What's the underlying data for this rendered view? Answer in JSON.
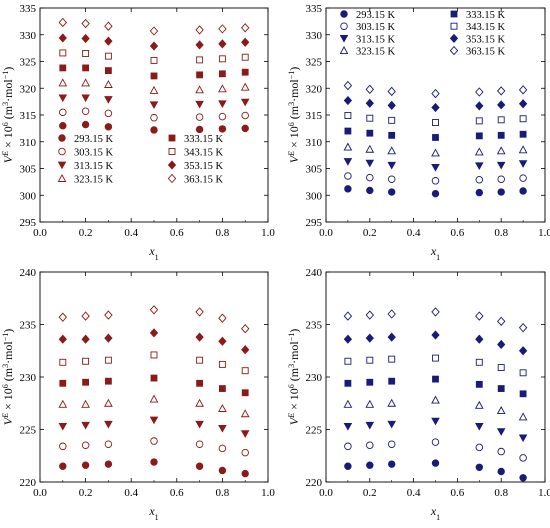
{
  "chart_data": [
    {
      "id": "panel-top-left",
      "type": "scatter",
      "xlabel": "x1",
      "ylabel": "VE × 10^6 (m^3·mol^-1)",
      "xlim": [
        0,
        1.0
      ],
      "ylim": [
        295,
        335
      ],
      "xticks": [
        "0.0",
        "0.2",
        "0.4",
        "0.6",
        "0.8",
        "1.0"
      ],
      "yticks": [
        "295",
        "300",
        "305",
        "310",
        "315",
        "320",
        "325",
        "330",
        "335"
      ],
      "color": "#8b1a1a",
      "legend_placement": "bottom-left",
      "x": [
        0.1,
        0.2,
        0.3,
        0.5,
        0.7,
        0.8,
        0.9
      ],
      "series": [
        {
          "name": "293.15 K",
          "marker": "circle-filled",
          "values": [
            313.0,
            313.2,
            312.8,
            312.2,
            312.3,
            312.4,
            312.5
          ]
        },
        {
          "name": "303.15 K",
          "marker": "circle-open",
          "values": [
            315.5,
            315.7,
            315.3,
            314.5,
            314.6,
            314.7,
            314.9
          ]
        },
        {
          "name": "313.15 K",
          "marker": "triangle-down-filled",
          "values": [
            318.2,
            318.2,
            317.9,
            316.9,
            317.0,
            317.1,
            317.4
          ]
        },
        {
          "name": "323.15 K",
          "marker": "triangle-up-open",
          "values": [
            321.0,
            321.0,
            320.7,
            319.6,
            319.7,
            319.9,
            320.2
          ]
        },
        {
          "name": "333.15 K",
          "marker": "square-filled",
          "values": [
            323.8,
            323.8,
            323.3,
            322.3,
            322.5,
            322.7,
            323.0
          ]
        },
        {
          "name": "343.15 K",
          "marker": "square-open",
          "values": [
            326.6,
            326.5,
            326.0,
            325.2,
            325.3,
            325.5,
            325.8
          ]
        },
        {
          "name": "353.15 K",
          "marker": "diamond-filled",
          "values": [
            329.4,
            329.3,
            328.8,
            327.9,
            328.1,
            328.3,
            328.6
          ]
        },
        {
          "name": "363.15 K",
          "marker": "diamond-open",
          "values": [
            332.3,
            332.1,
            331.6,
            330.7,
            330.9,
            331.1,
            331.3
          ]
        }
      ]
    },
    {
      "id": "panel-top-right",
      "type": "scatter",
      "xlabel": "x1",
      "ylabel": "VE × 10^6 (m^3·mol^-1)",
      "xlim": [
        0,
        1.0
      ],
      "ylim": [
        295,
        335
      ],
      "xticks": [
        "0.0",
        "0.2",
        "0.4",
        "0.6",
        "0.8",
        "1.0"
      ],
      "yticks": [
        "295",
        "300",
        "305",
        "310",
        "315",
        "320",
        "325",
        "330",
        "335"
      ],
      "color": "#1a1a7a",
      "legend_placement": "top",
      "x": [
        0.1,
        0.2,
        0.3,
        0.5,
        0.7,
        0.8,
        0.9
      ],
      "series": [
        {
          "name": "293.15 K",
          "marker": "circle-filled",
          "values": [
            301.2,
            300.9,
            300.6,
            300.3,
            300.5,
            300.6,
            300.8
          ]
        },
        {
          "name": "303.15 K",
          "marker": "circle-open",
          "values": [
            303.6,
            303.3,
            303.0,
            302.7,
            302.9,
            303.0,
            303.2
          ]
        },
        {
          "name": "313.15 K",
          "marker": "triangle-down-filled",
          "values": [
            306.3,
            306.0,
            305.6,
            305.2,
            305.5,
            305.6,
            305.9
          ]
        },
        {
          "name": "323.15 K",
          "marker": "triangle-up-open",
          "values": [
            309.0,
            308.6,
            308.3,
            307.9,
            308.1,
            308.3,
            308.5
          ]
        },
        {
          "name": "333.15 K",
          "marker": "square-filled",
          "values": [
            312.0,
            311.6,
            311.2,
            310.8,
            311.1,
            311.2,
            311.4
          ]
        },
        {
          "name": "343.15 K",
          "marker": "square-open",
          "values": [
            314.9,
            314.4,
            314.0,
            313.6,
            313.9,
            314.1,
            314.3
          ]
        },
        {
          "name": "353.15 K",
          "marker": "diamond-filled",
          "values": [
            317.7,
            317.2,
            316.8,
            316.4,
            316.7,
            316.9,
            317.1
          ]
        },
        {
          "name": "363.15 K",
          "marker": "diamond-open",
          "values": [
            320.5,
            319.8,
            319.4,
            319.0,
            319.3,
            319.5,
            319.7
          ]
        }
      ]
    },
    {
      "id": "panel-bottom-left",
      "type": "scatter",
      "xlabel": "x1",
      "ylabel": "VE × 10^6 (m^3·mol^-1)",
      "xlim": [
        0,
        1.0
      ],
      "ylim": [
        220,
        240
      ],
      "xticks": [
        "0.0",
        "0.2",
        "0.4",
        "0.6",
        "0.8",
        "1.0"
      ],
      "yticks": [
        "220",
        "225",
        "230",
        "235",
        "240"
      ],
      "color": "#8b1a1a",
      "x": [
        0.1,
        0.2,
        0.3,
        0.5,
        0.7,
        0.8,
        0.9
      ],
      "series": [
        {
          "name": "293.15 K",
          "marker": "circle-filled",
          "values": [
            221.5,
            221.6,
            221.7,
            221.9,
            221.5,
            221.1,
            220.8
          ]
        },
        {
          "name": "303.15 K",
          "marker": "circle-open",
          "values": [
            223.4,
            223.5,
            223.6,
            223.9,
            223.6,
            223.2,
            222.8
          ]
        },
        {
          "name": "313.15 K",
          "marker": "triangle-down-filled",
          "values": [
            225.3,
            225.4,
            225.5,
            225.9,
            225.5,
            225.1,
            224.6
          ]
        },
        {
          "name": "323.15 K",
          "marker": "triangle-up-open",
          "values": [
            227.4,
            227.4,
            227.5,
            227.9,
            227.5,
            227.0,
            226.5
          ]
        },
        {
          "name": "333.15 K",
          "marker": "square-filled",
          "values": [
            229.4,
            229.5,
            229.6,
            229.9,
            229.4,
            228.9,
            228.5
          ]
        },
        {
          "name": "343.15 K",
          "marker": "square-open",
          "values": [
            231.4,
            231.5,
            231.6,
            232.1,
            231.6,
            231.2,
            230.6
          ]
        },
        {
          "name": "353.15 K",
          "marker": "diamond-filled",
          "values": [
            233.6,
            233.6,
            233.7,
            234.2,
            233.8,
            233.4,
            232.6
          ]
        },
        {
          "name": "363.15 K",
          "marker": "diamond-open",
          "values": [
            235.7,
            235.8,
            235.9,
            236.4,
            236.2,
            235.6,
            234.6
          ]
        }
      ]
    },
    {
      "id": "panel-bottom-right",
      "type": "scatter",
      "xlabel": "x1",
      "ylabel": "VE × 10^6 (m^3·mol^-1)",
      "xlim": [
        0,
        1.0
      ],
      "ylim": [
        220,
        240
      ],
      "xticks": [
        "0.0",
        "0.2",
        "0.4",
        "0.6",
        "0.8",
        "1.0"
      ],
      "yticks": [
        "220",
        "225",
        "230",
        "235",
        "240"
      ],
      "color": "#1a1a7a",
      "x": [
        0.1,
        0.2,
        0.3,
        0.5,
        0.7,
        0.8,
        0.9
      ],
      "series": [
        {
          "name": "293.15 K",
          "marker": "circle-filled",
          "values": [
            221.5,
            221.6,
            221.7,
            221.8,
            221.4,
            221.0,
            220.4
          ]
        },
        {
          "name": "303.15 K",
          "marker": "circle-open",
          "values": [
            223.4,
            223.5,
            223.6,
            223.8,
            223.3,
            222.9,
            222.3
          ]
        },
        {
          "name": "313.15 K",
          "marker": "triangle-down-filled",
          "values": [
            225.3,
            225.4,
            225.5,
            225.8,
            225.3,
            224.8,
            224.2
          ]
        },
        {
          "name": "323.15 K",
          "marker": "triangle-up-open",
          "values": [
            227.4,
            227.4,
            227.5,
            227.8,
            227.3,
            226.8,
            226.2
          ]
        },
        {
          "name": "333.15 K",
          "marker": "square-filled",
          "values": [
            229.4,
            229.5,
            229.6,
            229.8,
            229.3,
            228.9,
            228.4
          ]
        },
        {
          "name": "343.15 K",
          "marker": "square-open",
          "values": [
            231.5,
            231.6,
            231.7,
            231.8,
            231.4,
            230.9,
            230.4
          ]
        },
        {
          "name": "353.15 K",
          "marker": "diamond-filled",
          "values": [
            233.6,
            233.7,
            233.8,
            234.0,
            233.6,
            233.1,
            232.5
          ]
        },
        {
          "name": "363.15 K",
          "marker": "diamond-open",
          "values": [
            235.8,
            235.9,
            236.0,
            236.2,
            235.8,
            235.3,
            234.7
          ]
        }
      ]
    }
  ]
}
